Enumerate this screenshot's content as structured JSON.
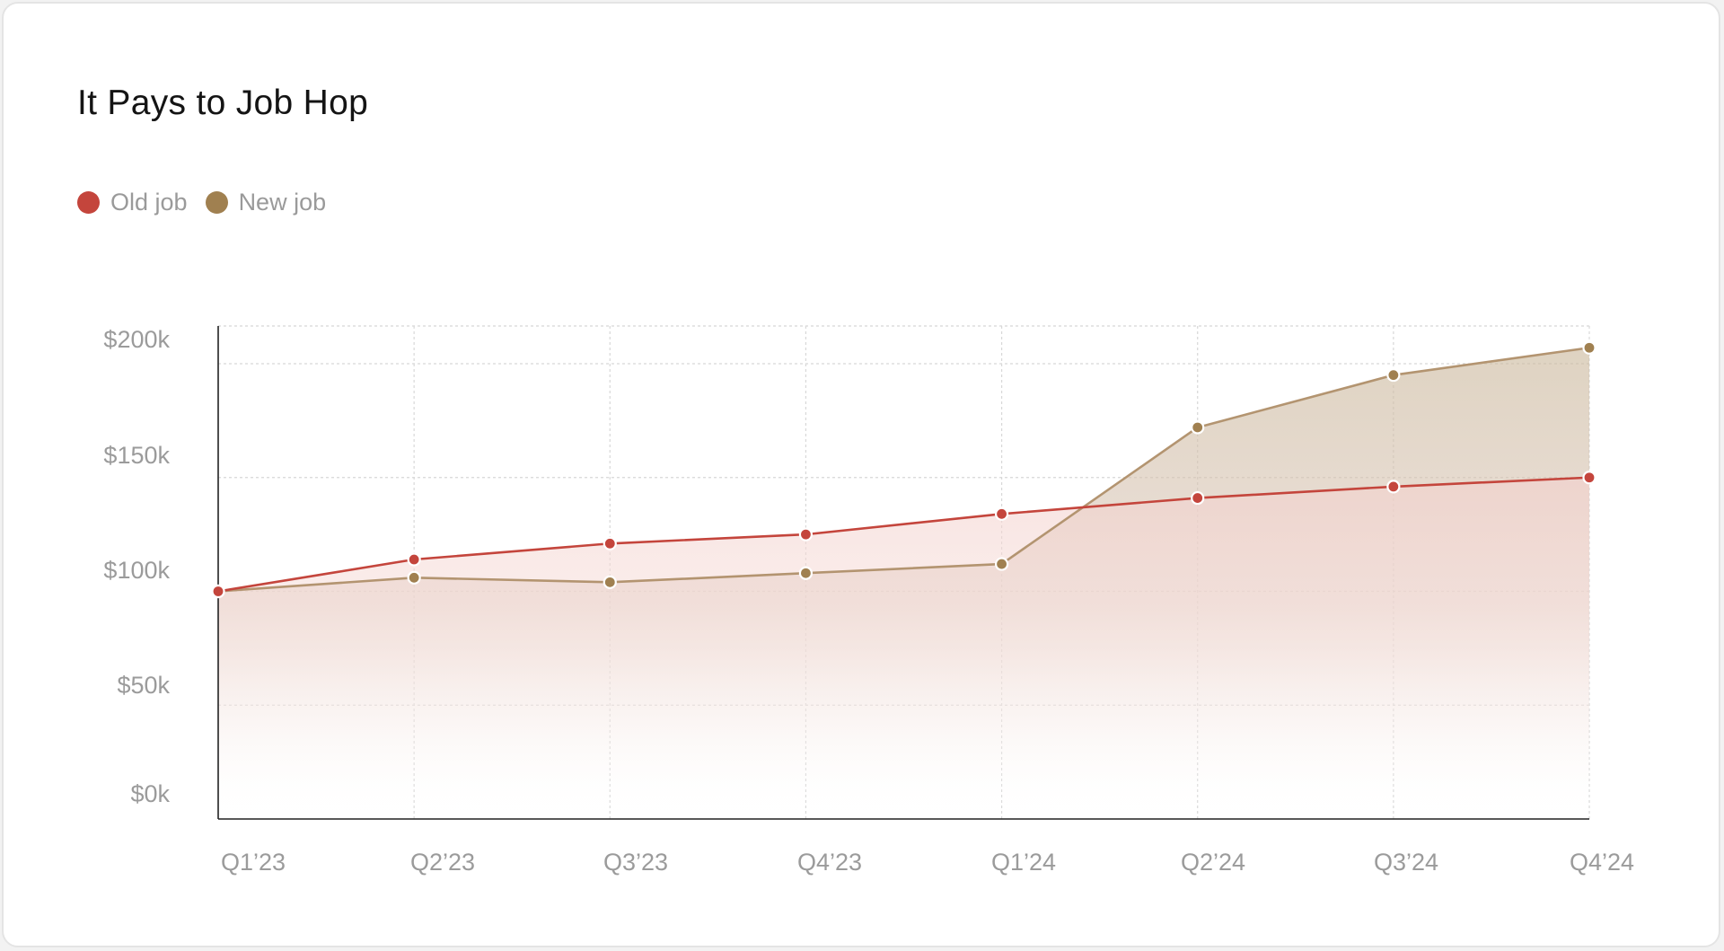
{
  "chart_data": {
    "type": "line",
    "title": "It Pays to Job Hop",
    "categories": [
      "Q1’23",
      "Q2’23",
      "Q3’23",
      "Q4’23",
      "Q1’24",
      "Q2’24",
      "Q3’24",
      "Q4’24"
    ],
    "yticks": [
      "$0k",
      "$50k",
      "$100k",
      "$150k",
      "$200k"
    ],
    "ytick_values": [
      0,
      50,
      100,
      150,
      200
    ],
    "ylim": [
      0,
      208
    ],
    "grid": true,
    "legend_position": "top-left",
    "series": [
      {
        "name": "Old job",
        "color": "#c4453c",
        "values": [
          100,
          114,
          121,
          125,
          134,
          141,
          146,
          150
        ]
      },
      {
        "name": "New job",
        "color": "#a08050",
        "values": [
          100,
          106,
          104,
          108,
          112,
          172,
          195,
          207
        ]
      }
    ]
  }
}
